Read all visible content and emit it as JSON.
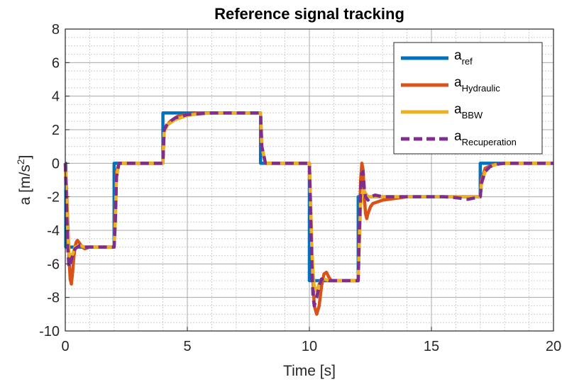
{
  "chart_data": {
    "type": "line",
    "title": "Reference signal tracking",
    "xlabel": "Time [s]",
    "ylabel": {
      "base": "a [m/s",
      "sup": "2",
      "end": "]"
    },
    "xlim": [
      0,
      20
    ],
    "ylim": [
      -10,
      8
    ],
    "xticks": [
      0,
      5,
      10,
      15,
      20
    ],
    "yticks": [
      -10,
      -8,
      -6,
      -4,
      -2,
      0,
      2,
      4,
      6,
      8
    ],
    "grid": true,
    "minor_grid": true,
    "legend_position": "top-right",
    "series": [
      {
        "name": "a",
        "subscript": "ref",
        "color": "#0072BD",
        "dash": "solid",
        "x": [
          0,
          0.02,
          0.02,
          2.0,
          2.0,
          4.0,
          4.0,
          8.0,
          8.0,
          10.0,
          10.0,
          12.0,
          12.0,
          17.0,
          17.0,
          20.0
        ],
        "y": [
          0,
          0,
          -5,
          -5,
          0,
          0,
          3,
          3,
          0,
          0,
          -7,
          -7,
          -2,
          -2,
          0,
          0
        ]
      },
      {
        "name": "a",
        "subscript": "Hydraulic",
        "color": "#D95319",
        "dash": "solid",
        "x": [
          0,
          0.05,
          0.1,
          0.15,
          0.2,
          0.25,
          0.3,
          0.35,
          0.4,
          0.45,
          0.5,
          0.6,
          0.7,
          0.8,
          1.0,
          2.0,
          2.05,
          2.1,
          2.2,
          2.4,
          2.7,
          4.0,
          4.05,
          4.3,
          4.6,
          5.0,
          5.5,
          6.0,
          7.0,
          8.0,
          8.05,
          8.2,
          10.0,
          10.05,
          10.1,
          10.15,
          10.2,
          10.3,
          10.4,
          10.5,
          10.6,
          10.7,
          10.8,
          10.9,
          11.0,
          12.0,
          12.05,
          12.1,
          12.15,
          12.2,
          12.25,
          12.3,
          12.35,
          12.4,
          12.5,
          12.6,
          12.8,
          13.0,
          13.5,
          14.0,
          17.0,
          17.05,
          17.2,
          17.5,
          18.0,
          20.0
        ],
        "y": [
          0,
          -1.5,
          -3.5,
          -5.5,
          -6.9,
          -7.2,
          -6.5,
          -5.6,
          -5.0,
          -4.7,
          -4.6,
          -4.8,
          -5.0,
          -5.1,
          -5.0,
          -5.0,
          -3.0,
          -0.5,
          0.0,
          0.0,
          0.0,
          0.0,
          2.0,
          2.5,
          2.8,
          2.9,
          3.0,
          3.0,
          3.0,
          3.0,
          1.0,
          0.0,
          0.0,
          -2.5,
          -5.0,
          -7.0,
          -8.5,
          -9.0,
          -8.5,
          -7.3,
          -6.6,
          -6.5,
          -6.8,
          -7.0,
          -7.0,
          -7.0,
          -4.0,
          -1.0,
          0.0,
          -0.4,
          -2.0,
          -3.0,
          -3.3,
          -3.0,
          -2.6,
          -2.4,
          -2.3,
          -2.2,
          -2.1,
          -2.0,
          -2.0,
          -1.0,
          -0.3,
          -0.1,
          0.0,
          0.0
        ]
      },
      {
        "name": "a",
        "subscript": "BBW",
        "color": "#EDB120",
        "dash": "solid",
        "x": [
          0,
          0.05,
          0.1,
          0.15,
          0.2,
          0.3,
          0.4,
          0.6,
          0.8,
          1.0,
          2.0,
          2.05,
          2.1,
          2.2,
          2.5,
          4.0,
          4.05,
          4.2,
          4.5,
          5.0,
          5.5,
          6.0,
          7.0,
          8.0,
          8.05,
          8.2,
          10.0,
          10.05,
          10.1,
          10.15,
          10.2,
          10.3,
          10.4,
          10.5,
          10.6,
          10.8,
          11.0,
          12.0,
          12.05,
          12.1,
          12.2,
          12.3,
          12.4,
          12.6,
          12.8,
          13.0,
          14.0,
          17.0,
          17.05,
          17.2,
          17.4,
          17.7,
          18.0,
          20.0
        ],
        "y": [
          0,
          -2.0,
          -4.0,
          -5.3,
          -5.6,
          -5.4,
          -5.0,
          -4.9,
          -5.0,
          -5.0,
          -5.0,
          -3.5,
          -0.8,
          0.0,
          0.0,
          0.0,
          1.9,
          2.3,
          2.6,
          2.85,
          2.95,
          3.0,
          3.0,
          3.0,
          1.0,
          0.0,
          0.0,
          -2.5,
          -5.0,
          -6.5,
          -7.4,
          -7.6,
          -7.2,
          -6.9,
          -6.9,
          -7.0,
          -7.0,
          -7.0,
          -4.5,
          -2.5,
          -1.5,
          -1.8,
          -2.0,
          -2.0,
          -2.0,
          -2.0,
          -2.0,
          -2.0,
          -1.2,
          -0.5,
          -0.2,
          -0.05,
          0.0,
          0.0
        ]
      },
      {
        "name": "a",
        "subscript": "Recuperation",
        "color": "#7E2F8E",
        "dash": "dashed",
        "x": [
          0,
          0.05,
          0.1,
          0.15,
          0.2,
          0.3,
          0.4,
          0.6,
          0.8,
          1.0,
          2.0,
          2.05,
          2.1,
          2.2,
          2.5,
          4.0,
          4.05,
          4.2,
          4.5,
          5.0,
          5.5,
          6.0,
          7.0,
          8.0,
          8.05,
          8.2,
          10.0,
          10.05,
          10.1,
          10.15,
          10.2,
          10.3,
          10.4,
          10.5,
          10.6,
          10.8,
          11.0,
          12.0,
          12.05,
          12.1,
          12.15,
          12.2,
          12.25,
          12.3,
          12.4,
          12.5,
          12.7,
          13.0,
          14.0,
          15.5,
          16.0,
          16.5,
          17.0,
          17.05,
          17.2,
          17.4,
          17.7,
          18.0,
          20.0
        ],
        "y": [
          0,
          -2.5,
          -5.0,
          -6.2,
          -6.0,
          -5.5,
          -5.1,
          -4.9,
          -5.0,
          -5.0,
          -5.0,
          -3.5,
          -0.8,
          0.0,
          0.0,
          0.0,
          2.0,
          2.4,
          2.7,
          2.9,
          2.95,
          3.0,
          3.0,
          3.0,
          1.0,
          0.0,
          0.0,
          -3.0,
          -6.0,
          -8.0,
          -8.5,
          -8.0,
          -7.3,
          -6.9,
          -6.9,
          -7.0,
          -7.0,
          -7.0,
          -4.0,
          -1.5,
          -0.6,
          -0.5,
          -1.5,
          -2.0,
          -2.2,
          -2.0,
          -1.9,
          -2.0,
          -2.0,
          -2.0,
          -2.05,
          -2.15,
          -2.0,
          -1.2,
          -0.5,
          -0.2,
          -0.05,
          0.0,
          0.0
        ]
      }
    ]
  }
}
